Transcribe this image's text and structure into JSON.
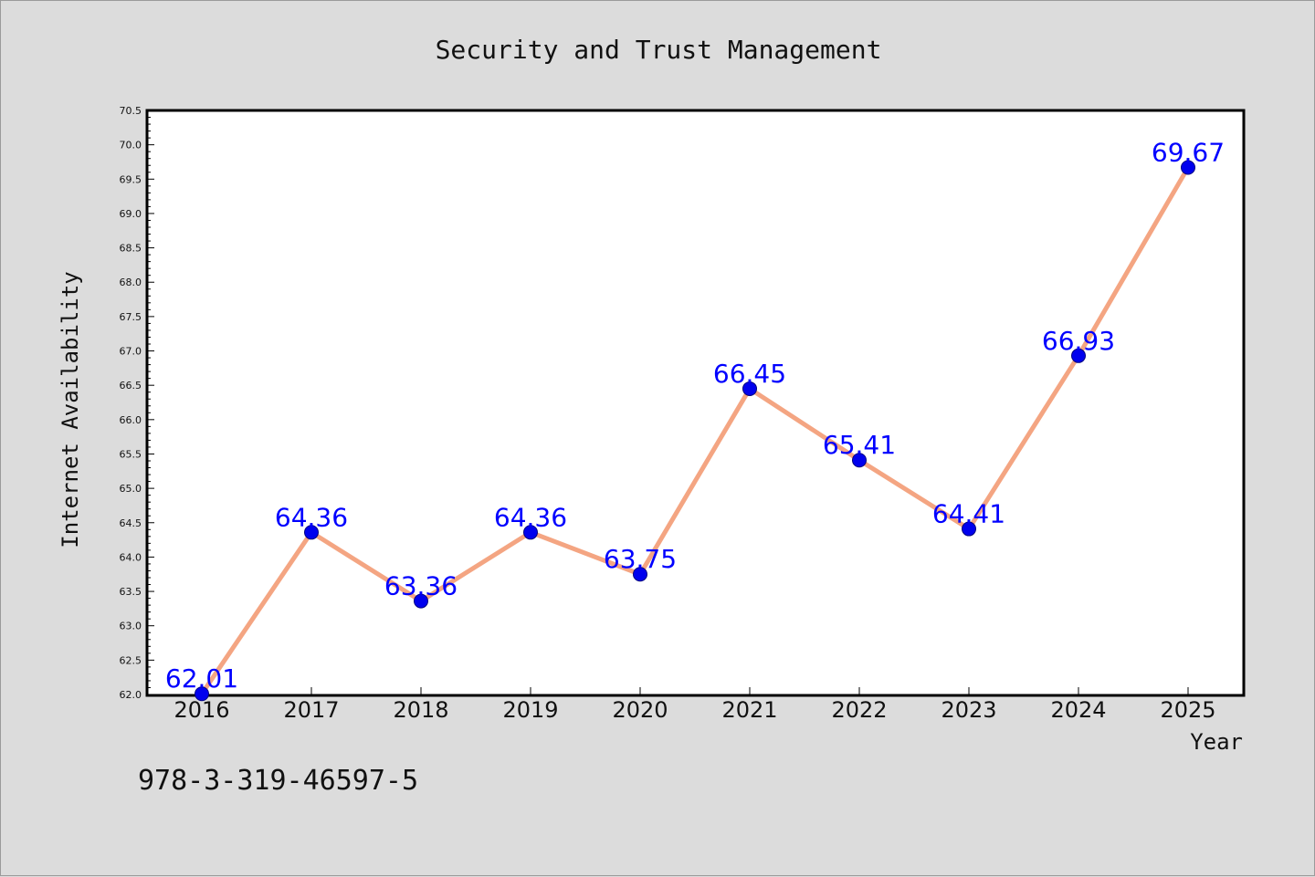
{
  "chart_data": {
    "type": "line",
    "title": "Security and Trust Management",
    "xlabel": "Year",
    "ylabel": "Internet Availability",
    "footer": "978-3-319-46597-5",
    "x": [
      "2016",
      "2017",
      "2018",
      "2019",
      "2020",
      "2021",
      "2022",
      "2023",
      "2024",
      "2025"
    ],
    "values": [
      62.01,
      64.36,
      63.36,
      64.36,
      63.75,
      66.45,
      65.41,
      64.41,
      66.93,
      69.67
    ],
    "value_labels": [
      "62.01",
      "64.36",
      "63.36",
      "64.36",
      "63.75",
      "66.45",
      "65.41",
      "64.41",
      "66.93",
      "69.67"
    ],
    "yticks": [
      "62.0",
      "62.5",
      "63.0",
      "63.5",
      "64.0",
      "64.5",
      "65.0",
      "65.5",
      "66.0",
      "66.5",
      "67.0",
      "67.5",
      "68.0",
      "68.5",
      "69.0",
      "69.5",
      "70.0",
      "70.5"
    ],
    "ylim": [
      62.0,
      70.5
    ],
    "grid": false,
    "legend": "none",
    "colors": {
      "line": "#f4a582",
      "marker": "#0000ee",
      "marker_edge": "#000080",
      "value_label": "#0000ff",
      "background": "#dcdcdc",
      "plot_bg": "#ffffff"
    }
  }
}
